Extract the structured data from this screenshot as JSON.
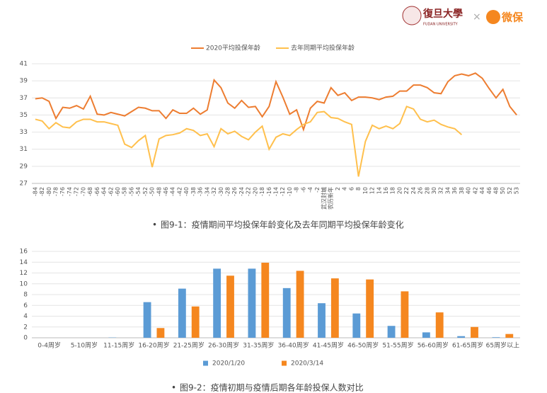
{
  "logos": {
    "university": "復旦大學",
    "university_en": "FUDAN UNIVERSITY",
    "partner": "微保"
  },
  "chart_data": [
    {
      "type": "line",
      "caption": "图9-1：疫情期间平均投保年龄变化及去年同期平均投保年龄变化",
      "categories": [
        "-84",
        "-82",
        "-80",
        "-78",
        "-76",
        "-74",
        "-72",
        "-70",
        "-68",
        "-66",
        "-64",
        "-62",
        "-60",
        "-58",
        "-56",
        "-54",
        "-52",
        "-50",
        "-48",
        "-46",
        "-44",
        "-42",
        "-40",
        "-38",
        "-36",
        "-34",
        "-32",
        "-30",
        "-28",
        "-26",
        "-24",
        "-22",
        "-20",
        "-18",
        "-16",
        "-14",
        "-12",
        "-10",
        "-8",
        "-6",
        "-4",
        "-2",
        "武汉封城",
        "农历新年",
        "2",
        "4",
        "6",
        "8",
        "10",
        "12",
        "14",
        "16",
        "18",
        "20",
        "22",
        "24",
        "26",
        "28",
        "30",
        "32",
        "34",
        "36",
        "38",
        "40",
        "42",
        "44",
        "46",
        "48",
        "50",
        "52",
        "53"
      ],
      "series": [
        {
          "name": "2020平均投保年龄",
          "color": "#ed7d31",
          "values": [
            36.9,
            37.0,
            36.6,
            34.6,
            35.9,
            35.8,
            36.1,
            35.7,
            37.2,
            35.1,
            35.0,
            35.3,
            35.1,
            34.9,
            35.4,
            35.9,
            35.8,
            35.5,
            35.5,
            34.6,
            35.6,
            35.2,
            35.2,
            35.8,
            35.1,
            35.6,
            39.1,
            38.2,
            36.4,
            35.8,
            36.7,
            35.9,
            36.0,
            34.8,
            36.0,
            38.9,
            37.1,
            35.1,
            35.6,
            33.3,
            35.8,
            36.6,
            36.4,
            38.2,
            37.3,
            37.6,
            36.7,
            37.1,
            37.1,
            37.0,
            36.8,
            37.1,
            37.2,
            37.8,
            37.8,
            38.5,
            38.5,
            38.2,
            37.6,
            37.5,
            38.9,
            39.6,
            39.8,
            39.6,
            39.9,
            39.3,
            38.1,
            37.0,
            38.0,
            36.0,
            35.0
          ]
        },
        {
          "name": "去年同期平均投保年龄",
          "color": "#ffc04d",
          "values": [
            34.5,
            34.3,
            33.4,
            34.1,
            33.6,
            33.5,
            34.2,
            34.5,
            34.5,
            34.2,
            34.2,
            34.0,
            33.8,
            31.6,
            31.2,
            32.0,
            32.6,
            28.9,
            32.2,
            32.6,
            32.7,
            32.9,
            33.4,
            33.2,
            32.6,
            32.8,
            31.3,
            33.4,
            32.8,
            33.1,
            32.5,
            32.1,
            33.0,
            33.7,
            31.0,
            32.4,
            32.8,
            32.6,
            33.3,
            33.9,
            34.2,
            35.3,
            35.4,
            34.7,
            34.6,
            34.2,
            33.9,
            27.8,
            31.9,
            33.8,
            33.4,
            33.7,
            33.4,
            34.0,
            36.0,
            35.7,
            34.5,
            34.2,
            34.4,
            33.9,
            33.6,
            33.4,
            32.7,
            null,
            null,
            null,
            null,
            null,
            null,
            null,
            null
          ]
        }
      ],
      "ylim": [
        27,
        41
      ],
      "yticks": [
        27,
        29,
        31,
        33,
        35,
        37,
        39,
        41
      ],
      "grid": true,
      "legend": "top"
    },
    {
      "type": "bar",
      "caption": "图9-2：疫情初期与疫情后期各年龄投保人数对比",
      "categories": [
        "0-4周岁",
        "5-10周岁",
        "11-15周岁",
        "16-20周岁",
        "21-25周岁",
        "26-30周岁",
        "31-35周岁",
        "36-40周岁",
        "41-45周岁",
        "46-50周岁",
        "51-55周岁",
        "56-60周岁",
        "61-65周岁",
        "65周岁以上"
      ],
      "series": [
        {
          "name": "2020/1/20",
          "color": "#5b9bd5",
          "values": [
            0,
            0,
            0.05,
            6.6,
            9.1,
            12.8,
            12.8,
            9.2,
            6.4,
            4.5,
            2.2,
            1.0,
            0.3,
            0.1
          ]
        },
        {
          "name": "2020/3/14",
          "color": "#f5871f",
          "values": [
            0,
            0,
            0,
            1.8,
            5.8,
            11.5,
            13.9,
            12.4,
            11.0,
            10.8,
            8.6,
            4.7,
            2.0,
            0.7
          ]
        }
      ],
      "ylim": [
        0,
        16
      ],
      "yticks": [
        0,
        2,
        4,
        6,
        8,
        10,
        12,
        14,
        16
      ],
      "grid": true,
      "legend": "bottom"
    }
  ]
}
